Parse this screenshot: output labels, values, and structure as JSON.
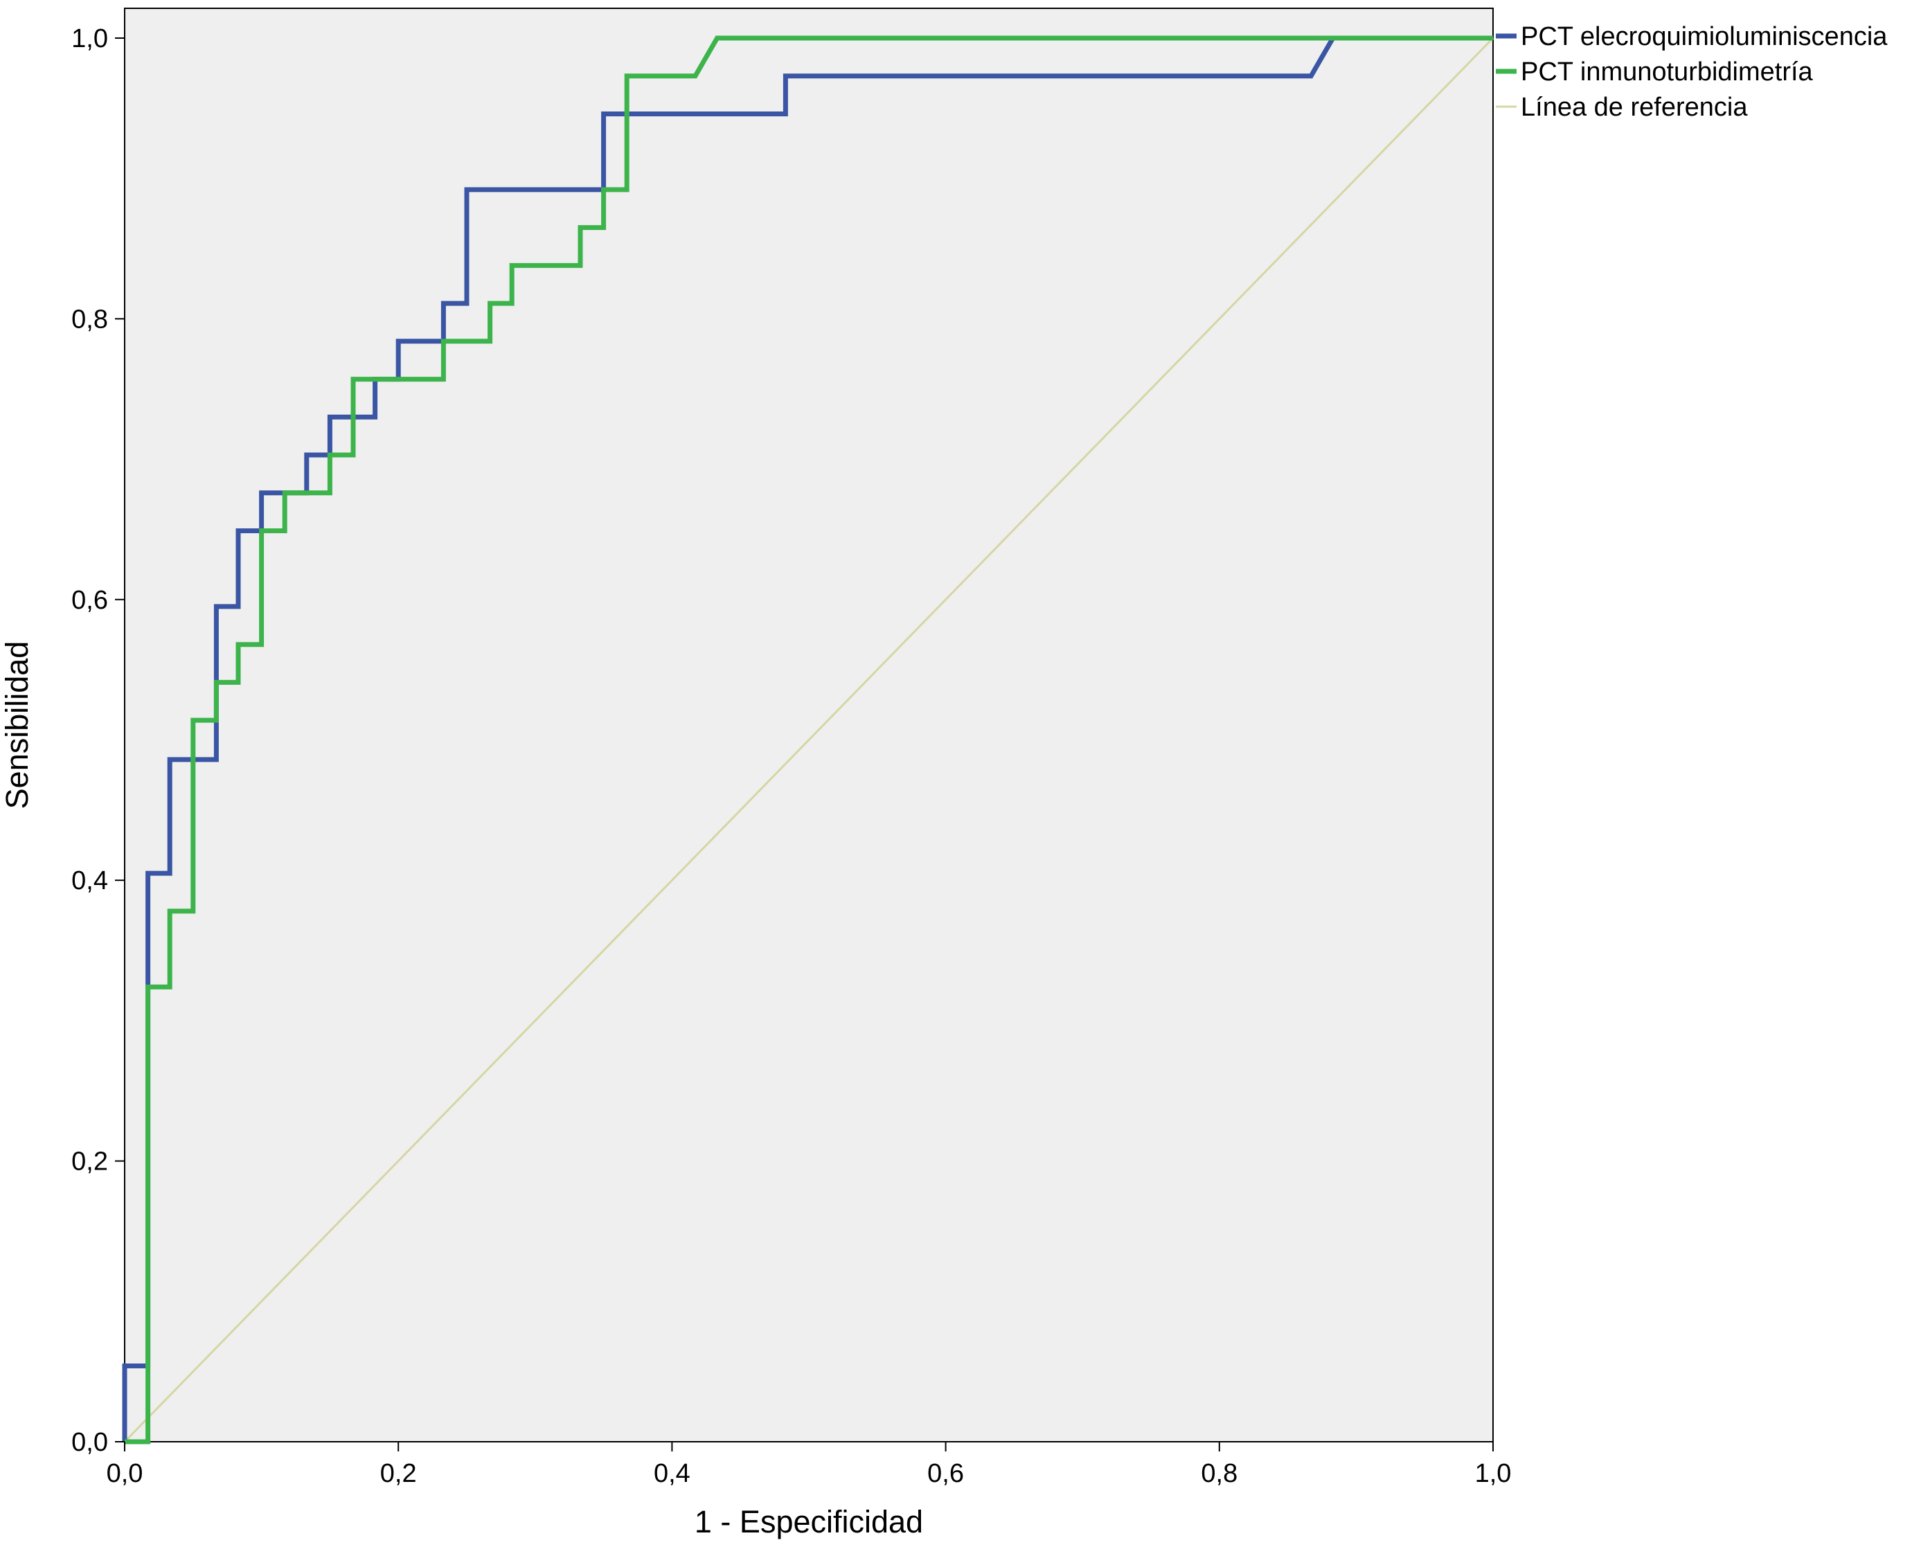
{
  "chart_data": {
    "type": "line",
    "xlabel": "1 - Especificidad",
    "ylabel": "Sensibilidad",
    "xlim": [
      0,
      1
    ],
    "ylim": [
      0,
      1
    ],
    "x_ticks": [
      "0,0",
      "0,2",
      "0,4",
      "0,6",
      "0,8",
      "1,0"
    ],
    "y_ticks": [
      "0,0",
      "0,2",
      "0,4",
      "0,6",
      "0,8",
      "1,0"
    ],
    "grid": false,
    "background": "#efefef",
    "legend_position": "right",
    "series": [
      {
        "name": "PCT elecroquimioluminiscencia",
        "color": "#3a55a4",
        "points": [
          [
            0.0,
            0.0
          ],
          [
            0.0,
            0.054
          ],
          [
            0.017,
            0.054
          ],
          [
            0.017,
            0.405
          ],
          [
            0.033,
            0.405
          ],
          [
            0.033,
            0.486
          ],
          [
            0.067,
            0.486
          ],
          [
            0.067,
            0.595
          ],
          [
            0.083,
            0.595
          ],
          [
            0.083,
            0.649
          ],
          [
            0.1,
            0.649
          ],
          [
            0.1,
            0.676
          ],
          [
            0.133,
            0.676
          ],
          [
            0.133,
            0.703
          ],
          [
            0.15,
            0.703
          ],
          [
            0.15,
            0.73
          ],
          [
            0.183,
            0.73
          ],
          [
            0.183,
            0.757
          ],
          [
            0.2,
            0.757
          ],
          [
            0.2,
            0.784
          ],
          [
            0.233,
            0.784
          ],
          [
            0.233,
            0.811
          ],
          [
            0.25,
            0.811
          ],
          [
            0.25,
            0.892
          ],
          [
            0.35,
            0.892
          ],
          [
            0.35,
            0.946
          ],
          [
            0.483,
            0.946
          ],
          [
            0.483,
            0.973
          ],
          [
            0.867,
            0.973
          ],
          [
            0.883,
            1.0
          ],
          [
            1.0,
            1.0
          ]
        ]
      },
      {
        "name": "PCT inmunoturbidimetría",
        "color": "#3cb44b",
        "points": [
          [
            0.0,
            0.0
          ],
          [
            0.017,
            0.0
          ],
          [
            0.017,
            0.324
          ],
          [
            0.033,
            0.324
          ],
          [
            0.033,
            0.378
          ],
          [
            0.05,
            0.378
          ],
          [
            0.05,
            0.514
          ],
          [
            0.067,
            0.514
          ],
          [
            0.067,
            0.541
          ],
          [
            0.083,
            0.541
          ],
          [
            0.083,
            0.568
          ],
          [
            0.1,
            0.568
          ],
          [
            0.1,
            0.649
          ],
          [
            0.117,
            0.649
          ],
          [
            0.117,
            0.676
          ],
          [
            0.15,
            0.676
          ],
          [
            0.15,
            0.703
          ],
          [
            0.167,
            0.703
          ],
          [
            0.167,
            0.757
          ],
          [
            0.233,
            0.757
          ],
          [
            0.233,
            0.784
          ],
          [
            0.267,
            0.784
          ],
          [
            0.267,
            0.811
          ],
          [
            0.283,
            0.811
          ],
          [
            0.283,
            0.838
          ],
          [
            0.333,
            0.838
          ],
          [
            0.333,
            0.865
          ],
          [
            0.35,
            0.865
          ],
          [
            0.35,
            0.892
          ],
          [
            0.367,
            0.892
          ],
          [
            0.367,
            0.973
          ],
          [
            0.417,
            0.973
          ],
          [
            0.433,
            1.0
          ],
          [
            1.0,
            1.0
          ]
        ]
      },
      {
        "name": "Línea de referencia",
        "color": "#d6d6a4",
        "points": [
          [
            0.0,
            0.0
          ],
          [
            1.0,
            1.0
          ]
        ]
      }
    ]
  }
}
